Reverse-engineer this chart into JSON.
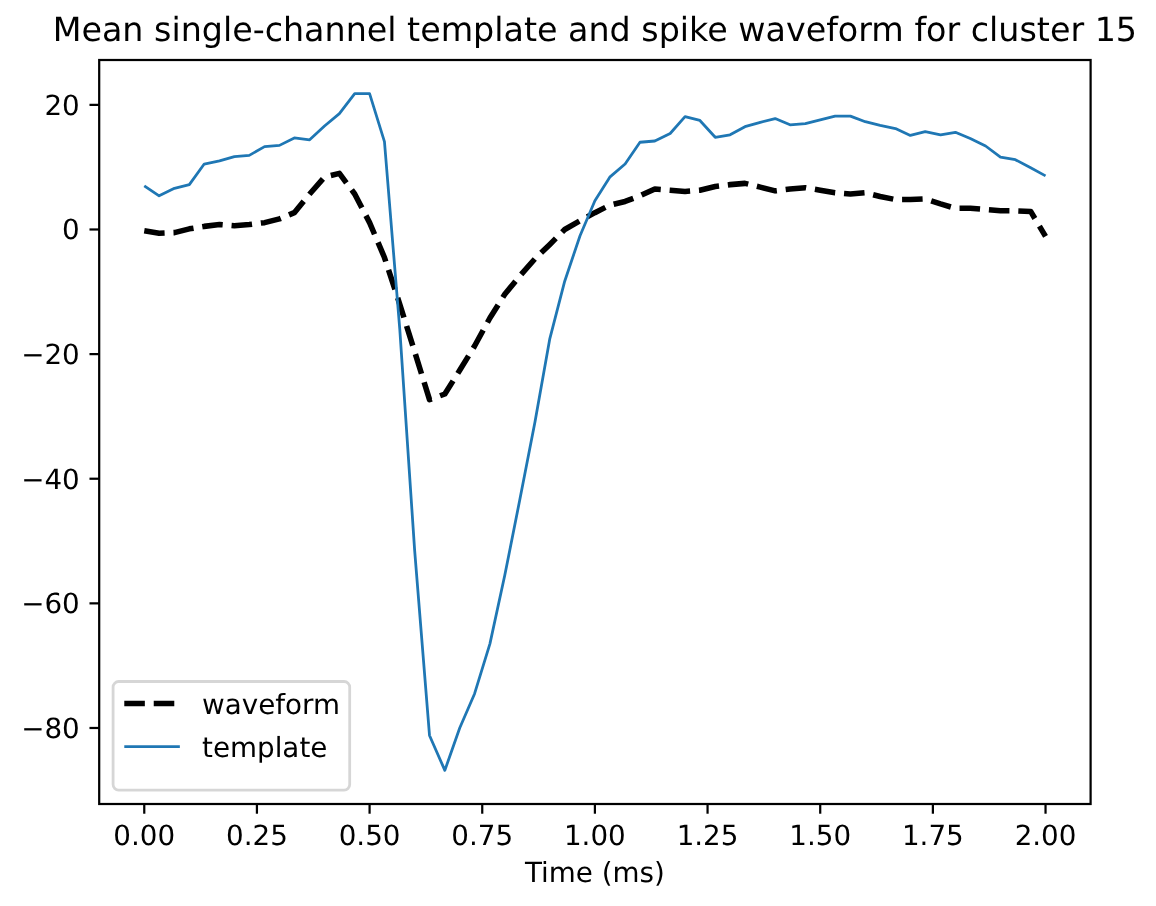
{
  "chart_data": {
    "type": "line",
    "title": "Mean single-channel template and spike waveform for cluster 15",
    "xlabel": "Time (ms)",
    "x": [
      0,
      0.033,
      0.067,
      0.1,
      0.133,
      0.167,
      0.2,
      0.233,
      0.267,
      0.3,
      0.333,
      0.367,
      0.4,
      0.433,
      0.467,
      0.5,
      0.533,
      0.567,
      0.6,
      0.633,
      0.667,
      0.7,
      0.733,
      0.767,
      0.8,
      0.833,
      0.867,
      0.9,
      0.933,
      0.967,
      1,
      1.033,
      1.067,
      1.1,
      1.133,
      1.167,
      1.2,
      1.233,
      1.267,
      1.3,
      1.333,
      1.367,
      1.4,
      1.433,
      1.467,
      1.5,
      1.533,
      1.567,
      1.6,
      1.633,
      1.667,
      1.7,
      1.733,
      1.767,
      1.8,
      1.833,
      1.867,
      1.9,
      1.933,
      1.967,
      2
    ],
    "series": [
      {
        "name": "waveform",
        "color": "#000000",
        "line_style": "dashed",
        "values": [
          -0.2,
          -0.6,
          -0.5,
          0.1,
          0.5,
          0.8,
          0.6,
          0.8,
          1.1,
          1.7,
          2.7,
          5.7,
          8.4,
          9.0,
          5.7,
          1.1,
          -4.5,
          -12.0,
          -19.6,
          -27.3,
          -26.4,
          -22.6,
          -18.7,
          -14.2,
          -10.4,
          -7.5,
          -4.7,
          -2.4,
          0.0,
          1.4,
          2.7,
          3.9,
          4.5,
          5.4,
          6.5,
          6.3,
          6.1,
          6.3,
          6.9,
          7.2,
          7.4,
          6.8,
          6.2,
          6.5,
          6.7,
          6.3,
          5.9,
          5.7,
          5.9,
          5.3,
          4.8,
          4.8,
          4.9,
          4.1,
          3.4,
          3.4,
          3.2,
          3.0,
          3.0,
          2.9,
          -1.1
        ]
      },
      {
        "name": "template",
        "color": "#1f77b4",
        "line_style": "solid",
        "values": [
          7.0,
          5.4,
          6.6,
          7.2,
          10.5,
          11.0,
          11.7,
          11.9,
          13.3,
          13.5,
          14.7,
          14.4,
          16.6,
          18.6,
          21.8,
          21.8,
          14.1,
          -16,
          -51.5,
          -81.2,
          -86.8,
          -80.0,
          -74.5,
          -66.5,
          -55.5,
          -43.5,
          -30.9,
          -17.5,
          -8.3,
          -1.0,
          4.6,
          8.4,
          10.5,
          14.0,
          14.2,
          15.4,
          18.1,
          17.5,
          14.8,
          15.2,
          16.5,
          17.2,
          17.8,
          16.8,
          17.0,
          17.6,
          18.2,
          18.2,
          17.3,
          16.7,
          16.2,
          15.1,
          15.7,
          15.2,
          15.6,
          14.6,
          13.4,
          11.6,
          11.2,
          9.9,
          8.6
        ]
      }
    ],
    "xlim": [
      -0.1,
      2.1
    ],
    "xticks": [
      {
        "value": 0,
        "label": "0.00"
      },
      {
        "value": 0.25,
        "label": "0.25"
      },
      {
        "value": 0.5,
        "label": "0.50"
      },
      {
        "value": 0.75,
        "label": "0.75"
      },
      {
        "value": 1,
        "label": "1.00"
      },
      {
        "value": 1.25,
        "label": "1.25"
      },
      {
        "value": 1.5,
        "label": "1.50"
      },
      {
        "value": 1.75,
        "label": "1.75"
      },
      {
        "value": 2,
        "label": "2.00"
      }
    ],
    "ylim": [
      -92.2,
      27.2
    ],
    "yticks": [
      -80,
      -60,
      -40,
      -20,
      0,
      20
    ],
    "legend": "bottom left"
  }
}
